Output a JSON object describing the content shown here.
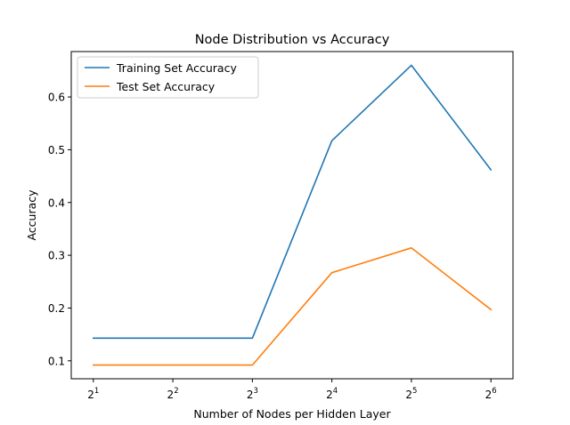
{
  "chart_data": {
    "type": "line",
    "title": "Node Distribution vs Accuracy",
    "xlabel": "Number of Nodes per Hidden Layer",
    "ylabel": "Accuracy",
    "x_scale": "log2",
    "x": [
      2,
      4,
      8,
      16,
      32,
      64
    ],
    "x_tick_labels": [
      {
        "base": "2",
        "exp": "1"
      },
      {
        "base": "2",
        "exp": "2"
      },
      {
        "base": "2",
        "exp": "3"
      },
      {
        "base": "2",
        "exp": "4"
      },
      {
        "base": "2",
        "exp": "5"
      },
      {
        "base": "2",
        "exp": "6"
      }
    ],
    "y_ticks": [
      "0.1",
      "0.2",
      "0.3",
      "0.4",
      "0.5",
      "0.6"
    ],
    "ylim": [
      0.066,
      0.686
    ],
    "grid": false,
    "legend_position": "top-left",
    "series": [
      {
        "name": "Training Set Accuracy",
        "color": "#1f77b4",
        "values": [
          0.143,
          0.143,
          0.143,
          0.517,
          0.66,
          0.462
        ]
      },
      {
        "name": "Test Set Accuracy",
        "color": "#ff7f0e",
        "values": [
          0.092,
          0.092,
          0.092,
          0.267,
          0.314,
          0.197
        ]
      }
    ]
  }
}
